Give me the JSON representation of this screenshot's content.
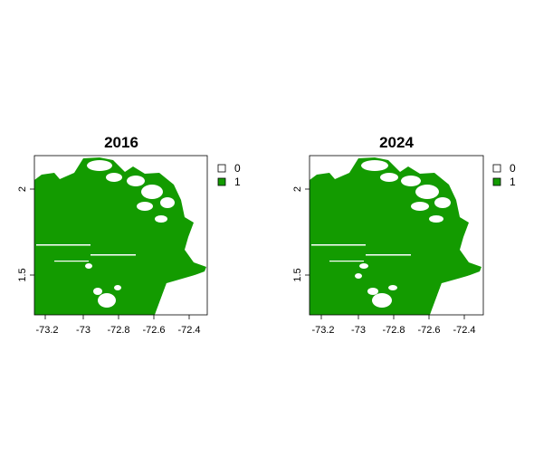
{
  "panels": [
    {
      "title": "2016",
      "x_ticks": [
        "-73.2",
        "-73",
        "-72.8",
        "-72.6",
        "-72.4"
      ],
      "y_ticks": [
        "1.5",
        "2"
      ],
      "legend": [
        {
          "label": "0",
          "color": "#ffffff"
        },
        {
          "label": "1",
          "color": "#139b00"
        }
      ]
    },
    {
      "title": "2024",
      "x_ticks": [
        "-73.2",
        "-73",
        "-72.8",
        "-72.6",
        "-72.4"
      ],
      "y_ticks": [
        "1.5",
        "2"
      ],
      "legend": [
        {
          "label": "0",
          "color": "#ffffff"
        },
        {
          "label": "1",
          "color": "#139b00"
        }
      ]
    }
  ],
  "colors": {
    "forest": "#139b00",
    "nonforest": "#ffffff",
    "axis": "#000000"
  }
}
